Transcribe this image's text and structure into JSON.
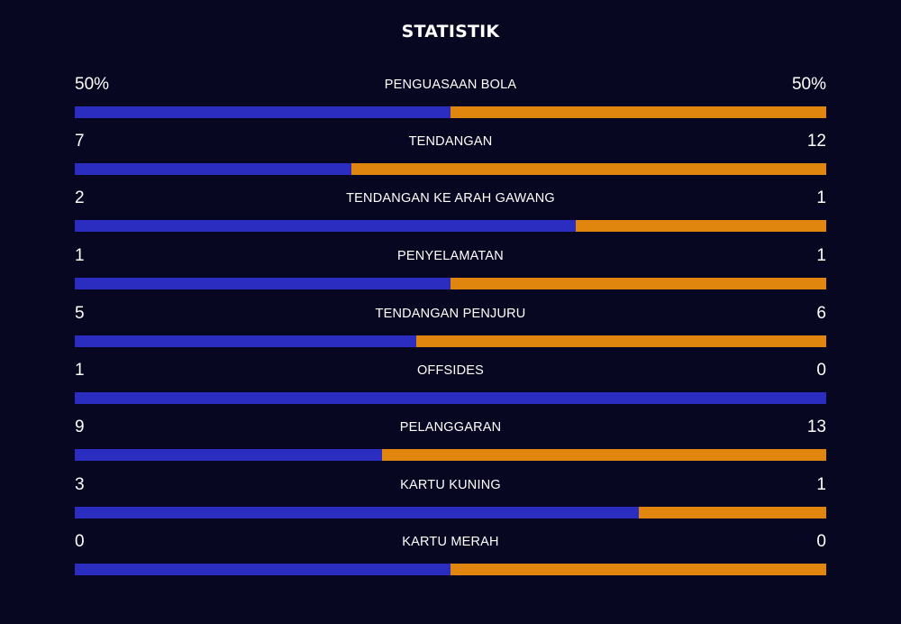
{
  "title": "STATISTIK",
  "colors": {
    "background": "#080722",
    "home_bar": "#2a2dbf",
    "away_bar": "#e0860f",
    "text": "#ffffff"
  },
  "stats": [
    {
      "label": "PENGUASAAN BOLA",
      "home": "50%",
      "away": "50%",
      "home_share": 0.5
    },
    {
      "label": "TENDANGAN",
      "home": "7",
      "away": "12",
      "home_share": 0.368
    },
    {
      "label": "TENDANGAN KE ARAH GAWANG",
      "home": "2",
      "away": "1",
      "home_share": 0.667
    },
    {
      "label": "PENYELAMATAN",
      "home": "1",
      "away": "1",
      "home_share": 0.5
    },
    {
      "label": "TENDANGAN PENJURU",
      "home": "5",
      "away": "6",
      "home_share": 0.455
    },
    {
      "label": "OFFSIDES",
      "home": "1",
      "away": "0",
      "home_share": 1.0
    },
    {
      "label": "PELANGGARAN",
      "home": "9",
      "away": "13",
      "home_share": 0.409
    },
    {
      "label": "KARTU KUNING",
      "home": "3",
      "away": "1",
      "home_share": 0.75
    },
    {
      "label": "KARTU MERAH",
      "home": "0",
      "away": "0",
      "home_share": 0.5
    }
  ]
}
